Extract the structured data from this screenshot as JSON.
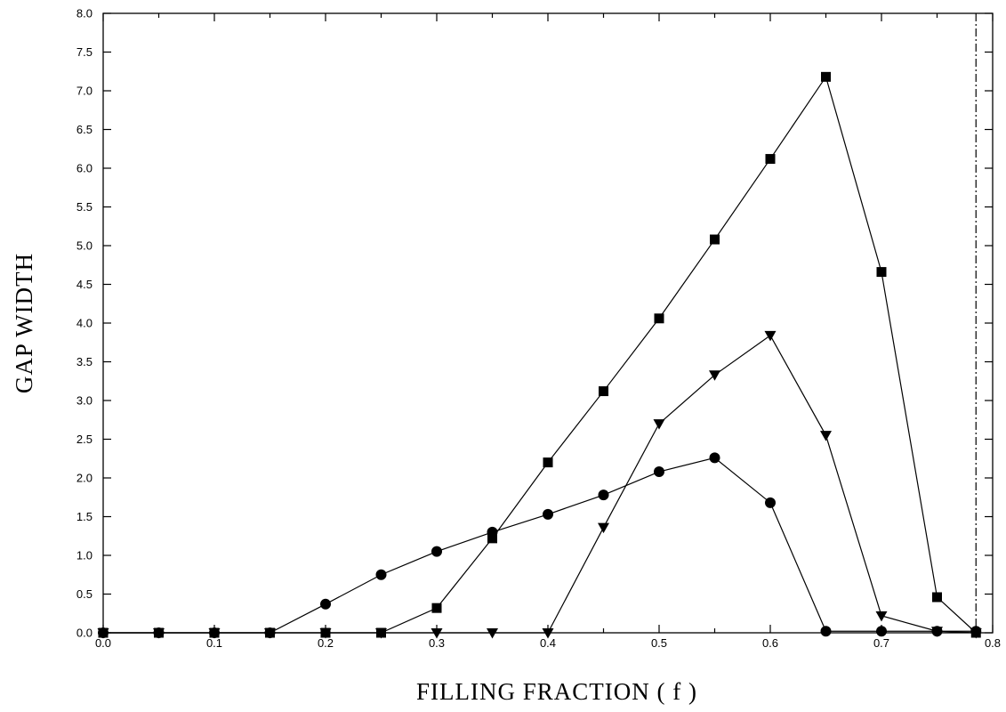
{
  "chart_data": {
    "type": "line",
    "title": "",
    "xlabel": "FILLING FRACTION ( f )",
    "ylabel": "GAP WIDTH",
    "xlim": [
      0.0,
      0.8
    ],
    "ylim": [
      0.0,
      8.0
    ],
    "xticks": [
      "0.0",
      "0.1",
      "0.2",
      "0.3",
      "0.4",
      "0.5",
      "0.6",
      "0.7",
      "0.8"
    ],
    "yticks": [
      "0.0",
      "0.5",
      "1.0",
      "1.5",
      "2.0",
      "2.5",
      "3.0",
      "3.5",
      "4.0",
      "4.5",
      "5.0",
      "5.5",
      "6.0",
      "6.5",
      "7.0",
      "7.5",
      "8.0"
    ],
    "grid": false,
    "legend": "none",
    "vertical_line": {
      "x": 0.785,
      "style": "dash-dot"
    },
    "series": [
      {
        "marker": "square",
        "x": [
          0.0,
          0.05,
          0.1,
          0.15,
          0.2,
          0.25,
          0.3,
          0.35,
          0.4,
          0.45,
          0.5,
          0.55,
          0.6,
          0.65,
          0.7,
          0.75,
          0.785
        ],
        "values": [
          0.0,
          0.0,
          0.0,
          0.0,
          0.0,
          0.0,
          0.32,
          1.22,
          2.2,
          3.12,
          4.06,
          5.08,
          6.12,
          7.18,
          4.66,
          0.46,
          0.0
        ]
      },
      {
        "marker": "triangle-down",
        "x": [
          0.0,
          0.05,
          0.1,
          0.15,
          0.2,
          0.25,
          0.3,
          0.35,
          0.4,
          0.45,
          0.5,
          0.55,
          0.6,
          0.65,
          0.7,
          0.75,
          0.785
        ],
        "values": [
          0.0,
          0.0,
          0.0,
          0.0,
          0.0,
          0.0,
          0.0,
          0.0,
          0.0,
          1.36,
          2.7,
          3.33,
          3.84,
          2.55,
          0.22,
          0.02,
          0.0
        ]
      },
      {
        "marker": "circle",
        "x": [
          0.0,
          0.05,
          0.1,
          0.15,
          0.2,
          0.25,
          0.3,
          0.35,
          0.4,
          0.45,
          0.5,
          0.55,
          0.6,
          0.65,
          0.7,
          0.75,
          0.785
        ],
        "values": [
          0.0,
          0.0,
          0.0,
          0.0,
          0.37,
          0.75,
          1.05,
          1.3,
          1.53,
          1.78,
          2.08,
          2.26,
          1.68,
          0.02,
          0.02,
          0.02,
          0.02
        ]
      }
    ]
  }
}
